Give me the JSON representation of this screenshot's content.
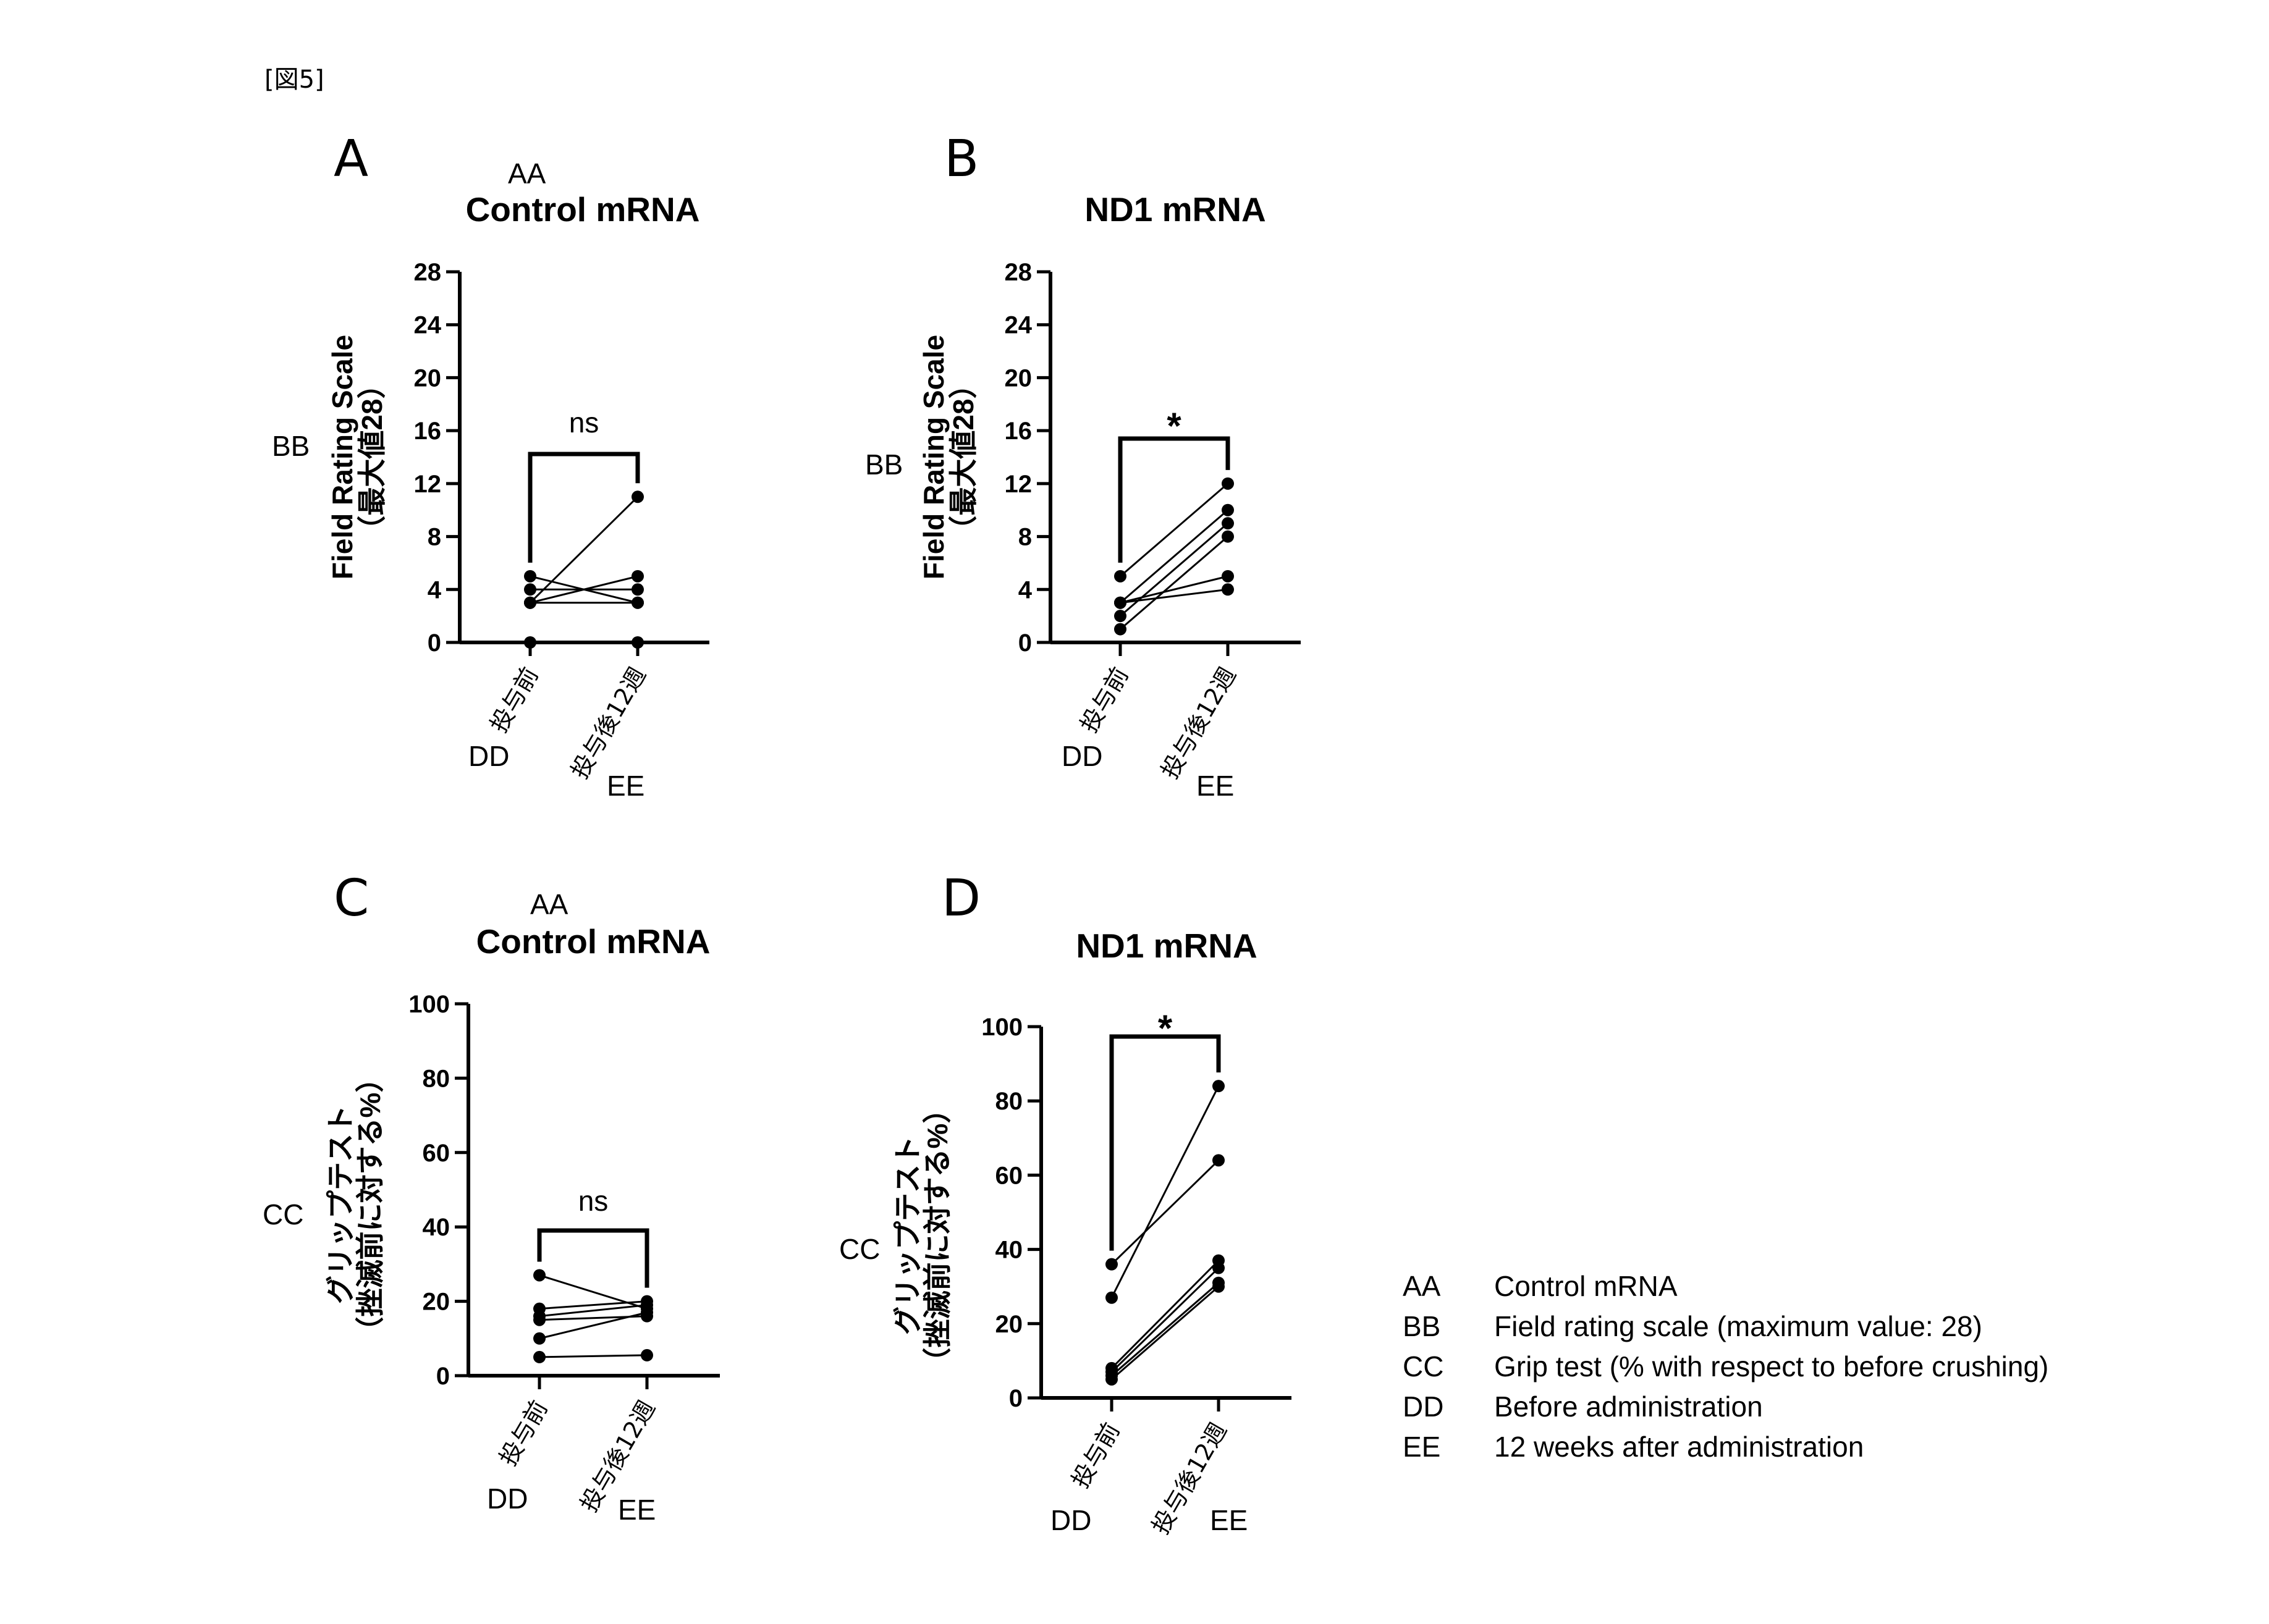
{
  "figure_label": "[図5]",
  "chart_data": [
    {
      "panel": "A",
      "type": "line",
      "annotation": "AA",
      "title": "Control mRNA",
      "ylabel": "Field Rating Scale",
      "ylabel2": "（最大値28）",
      "ylabel_code": "BB",
      "ylim": [
        0,
        28
      ],
      "yticks": [
        0,
        4,
        8,
        12,
        16,
        20,
        24,
        28
      ],
      "categories": [
        "投与前",
        "投与後12週"
      ],
      "category_codes": [
        "DD",
        "EE"
      ],
      "significance": "ns",
      "series": [
        {
          "values": [
            5,
            3
          ]
        },
        {
          "values": [
            4,
            4
          ]
        },
        {
          "values": [
            3,
            5
          ]
        },
        {
          "values": [
            3,
            11
          ]
        },
        {
          "values": [
            3,
            3
          ]
        },
        {
          "values": [
            0,
            0
          ]
        }
      ]
    },
    {
      "panel": "B",
      "type": "line",
      "title": "ND1 mRNA",
      "ylabel": "Field Rating Scale",
      "ylabel2": "（最大値28）",
      "ylabel_code": "BB",
      "ylim": [
        0,
        28
      ],
      "yticks": [
        0,
        4,
        8,
        12,
        16,
        20,
        24,
        28
      ],
      "categories": [
        "投与前",
        "投与後12週"
      ],
      "category_codes": [
        "DD",
        "EE"
      ],
      "significance": "*",
      "series": [
        {
          "values": [
            5,
            12
          ]
        },
        {
          "values": [
            3,
            10
          ]
        },
        {
          "values": [
            3,
            4
          ]
        },
        {
          "values": [
            2,
            9
          ]
        },
        {
          "values": [
            1,
            8
          ]
        },
        {
          "values": [
            3,
            5
          ]
        }
      ]
    },
    {
      "panel": "C",
      "type": "line",
      "annotation": "AA",
      "title": "Control mRNA",
      "ylabel": "グリップテスト",
      "ylabel2": "（挫滅前に対する%）",
      "ylabel_code": "CC",
      "ylim": [
        0,
        100
      ],
      "yticks": [
        0,
        20,
        40,
        60,
        80,
        100
      ],
      "categories": [
        "投与前",
        "投与後12週"
      ],
      "category_codes": [
        "DD",
        "EE"
      ],
      "significance": "ns",
      "series": [
        {
          "values": [
            27,
            18
          ]
        },
        {
          "values": [
            18,
            20
          ]
        },
        {
          "values": [
            16,
            19
          ]
        },
        {
          "values": [
            15,
            16
          ]
        },
        {
          "values": [
            10,
            17
          ]
        },
        {
          "values": [
            5,
            5.5
          ]
        }
      ]
    },
    {
      "panel": "D",
      "type": "line",
      "title": "ND1 mRNA",
      "ylabel": "グリップテスト",
      "ylabel2": "（挫滅前に対する%）",
      "ylabel_code": "CC",
      "ylim": [
        0,
        100
      ],
      "yticks": [
        0,
        20,
        40,
        60,
        80,
        100
      ],
      "categories": [
        "投与前",
        "投与後12週"
      ],
      "category_codes": [
        "DD",
        "EE"
      ],
      "significance": "*",
      "series": [
        {
          "values": [
            36,
            64
          ]
        },
        {
          "values": [
            27,
            84
          ]
        },
        {
          "values": [
            8,
            37
          ]
        },
        {
          "values": [
            7,
            35
          ]
        },
        {
          "values": [
            6,
            31
          ]
        },
        {
          "values": [
            5,
            30
          ]
        }
      ]
    }
  ],
  "legend": [
    {
      "code": "AA",
      "text": "Control mRNA"
    },
    {
      "code": "BB",
      "text": "Field rating scale (maximum value: 28)"
    },
    {
      "code": "CC",
      "text": "Grip test (% with respect to before crushing)"
    },
    {
      "code": "DD",
      "text": "Before administration"
    },
    {
      "code": "EE",
      "text": "12 weeks after administration"
    }
  ]
}
